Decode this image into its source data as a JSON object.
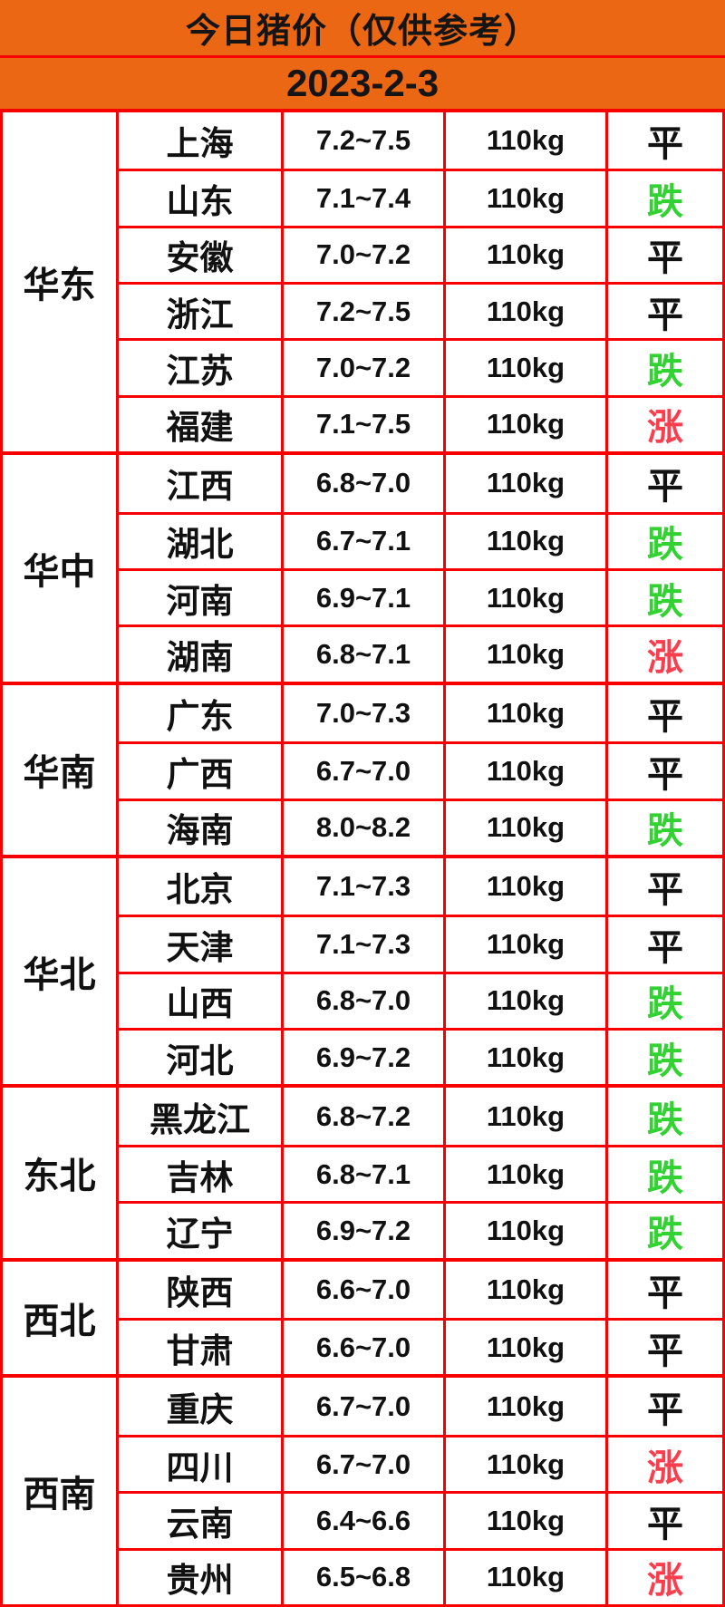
{
  "header": {
    "title": "今日猪价（仅供参考）",
    "date": "2023-2-3"
  },
  "colors": {
    "header_bg": "#EC6714",
    "border": "#F80000",
    "status_flat": "#121212",
    "status_down": "#32D232",
    "status_up": "#FA3E4E"
  },
  "table": {
    "regions": [
      {
        "name": "华东",
        "rows": [
          {
            "province": "上海",
            "price": "7.2~7.5",
            "weight": "110kg",
            "status": "平",
            "trend": "flat"
          },
          {
            "province": "山东",
            "price": "7.1~7.4",
            "weight": "110kg",
            "status": "跌",
            "trend": "down"
          },
          {
            "province": "安徽",
            "price": "7.0~7.2",
            "weight": "110kg",
            "status": "平",
            "trend": "flat"
          },
          {
            "province": "浙江",
            "price": "7.2~7.5",
            "weight": "110kg",
            "status": "平",
            "trend": "flat"
          },
          {
            "province": "江苏",
            "price": "7.0~7.2",
            "weight": "110kg",
            "status": "跌",
            "trend": "down"
          },
          {
            "province": "福建",
            "price": "7.1~7.5",
            "weight": "110kg",
            "status": "涨",
            "trend": "up"
          }
        ]
      },
      {
        "name": "华中",
        "rows": [
          {
            "province": "江西",
            "price": "6.8~7.0",
            "weight": "110kg",
            "status": "平",
            "trend": "flat"
          },
          {
            "province": "湖北",
            "price": "6.7~7.1",
            "weight": "110kg",
            "status": "跌",
            "trend": "down"
          },
          {
            "province": "河南",
            "price": "6.9~7.1",
            "weight": "110kg",
            "status": "跌",
            "trend": "down"
          },
          {
            "province": "湖南",
            "price": "6.8~7.1",
            "weight": "110kg",
            "status": "涨",
            "trend": "up"
          }
        ]
      },
      {
        "name": "华南",
        "rows": [
          {
            "province": "广东",
            "price": "7.0~7.3",
            "weight": "110kg",
            "status": "平",
            "trend": "flat"
          },
          {
            "province": "广西",
            "price": "6.7~7.0",
            "weight": "110kg",
            "status": "平",
            "trend": "flat"
          },
          {
            "province": "海南",
            "price": "8.0~8.2",
            "weight": "110kg",
            "status": "跌",
            "trend": "down"
          }
        ]
      },
      {
        "name": "华北",
        "rows": [
          {
            "province": "北京",
            "price": "7.1~7.3",
            "weight": "110kg",
            "status": "平",
            "trend": "flat"
          },
          {
            "province": "天津",
            "price": "7.1~7.3",
            "weight": "110kg",
            "status": "平",
            "trend": "flat"
          },
          {
            "province": "山西",
            "price": "6.8~7.0",
            "weight": "110kg",
            "status": "跌",
            "trend": "down"
          },
          {
            "province": "河北",
            "price": "6.9~7.2",
            "weight": "110kg",
            "status": "跌",
            "trend": "down"
          }
        ]
      },
      {
        "name": "东北",
        "rows": [
          {
            "province": "黑龙江",
            "price": "6.8~7.2",
            "weight": "110kg",
            "status": "跌",
            "trend": "down"
          },
          {
            "province": "吉林",
            "price": "6.8~7.1",
            "weight": "110kg",
            "status": "跌",
            "trend": "down"
          },
          {
            "province": "辽宁",
            "price": "6.9~7.2",
            "weight": "110kg",
            "status": "跌",
            "trend": "down"
          }
        ]
      },
      {
        "name": "西北",
        "rows": [
          {
            "province": "陕西",
            "price": "6.6~7.0",
            "weight": "110kg",
            "status": "平",
            "trend": "flat"
          },
          {
            "province": "甘肃",
            "price": "6.6~7.0",
            "weight": "110kg",
            "status": "平",
            "trend": "flat"
          }
        ]
      },
      {
        "name": "西南",
        "rows": [
          {
            "province": "重庆",
            "price": "6.7~7.0",
            "weight": "110kg",
            "status": "平",
            "trend": "flat"
          },
          {
            "province": "四川",
            "price": "6.7~7.0",
            "weight": "110kg",
            "status": "涨",
            "trend": "up"
          },
          {
            "province": "云南",
            "price": "6.4~6.6",
            "weight": "110kg",
            "status": "平",
            "trend": "flat"
          },
          {
            "province": "贵州",
            "price": "6.5~6.8",
            "weight": "110kg",
            "status": "涨",
            "trend": "up"
          }
        ]
      }
    ]
  },
  "chart_data": {
    "type": "table",
    "title": "今日猪价（仅供参考）",
    "date": "2023-2-3",
    "columns": [
      "region",
      "province",
      "price_range",
      "weight",
      "status"
    ],
    "rows": [
      [
        "华东",
        "上海",
        "7.2~7.5",
        "110kg",
        "平"
      ],
      [
        "华东",
        "山东",
        "7.1~7.4",
        "110kg",
        "跌"
      ],
      [
        "华东",
        "安徽",
        "7.0~7.2",
        "110kg",
        "平"
      ],
      [
        "华东",
        "浙江",
        "7.2~7.5",
        "110kg",
        "平"
      ],
      [
        "华东",
        "江苏",
        "7.0~7.2",
        "110kg",
        "跌"
      ],
      [
        "华东",
        "福建",
        "7.1~7.5",
        "110kg",
        "涨"
      ],
      [
        "华中",
        "江西",
        "6.8~7.0",
        "110kg",
        "平"
      ],
      [
        "华中",
        "湖北",
        "6.7~7.1",
        "110kg",
        "跌"
      ],
      [
        "华中",
        "河南",
        "6.9~7.1",
        "110kg",
        "跌"
      ],
      [
        "华中",
        "湖南",
        "6.8~7.1",
        "110kg",
        "涨"
      ],
      [
        "华南",
        "广东",
        "7.0~7.3",
        "110kg",
        "平"
      ],
      [
        "华南",
        "广西",
        "6.7~7.0",
        "110kg",
        "平"
      ],
      [
        "华南",
        "海南",
        "8.0~8.2",
        "110kg",
        "跌"
      ],
      [
        "华北",
        "北京",
        "7.1~7.3",
        "110kg",
        "平"
      ],
      [
        "华北",
        "天津",
        "7.1~7.3",
        "110kg",
        "平"
      ],
      [
        "华北",
        "山西",
        "6.8~7.0",
        "110kg",
        "跌"
      ],
      [
        "华北",
        "河北",
        "6.9~7.2",
        "110kg",
        "跌"
      ],
      [
        "东北",
        "黑龙江",
        "6.8~7.2",
        "110kg",
        "跌"
      ],
      [
        "东北",
        "吉林",
        "6.8~7.1",
        "110kg",
        "跌"
      ],
      [
        "东北",
        "辽宁",
        "6.9~7.2",
        "110kg",
        "跌"
      ],
      [
        "西北",
        "陕西",
        "6.6~7.0",
        "110kg",
        "平"
      ],
      [
        "西北",
        "甘肃",
        "6.6~7.0",
        "110kg",
        "平"
      ],
      [
        "西南",
        "重庆",
        "6.7~7.0",
        "110kg",
        "平"
      ],
      [
        "西南",
        "四川",
        "6.7~7.0",
        "110kg",
        "涨"
      ],
      [
        "西南",
        "云南",
        "6.4~6.6",
        "110kg",
        "平"
      ],
      [
        "西南",
        "贵州",
        "6.5~6.8",
        "110kg",
        "涨"
      ]
    ],
    "legend": {
      "平": "flat (black)",
      "跌": "down (green)",
      "涨": "up (red)"
    }
  }
}
